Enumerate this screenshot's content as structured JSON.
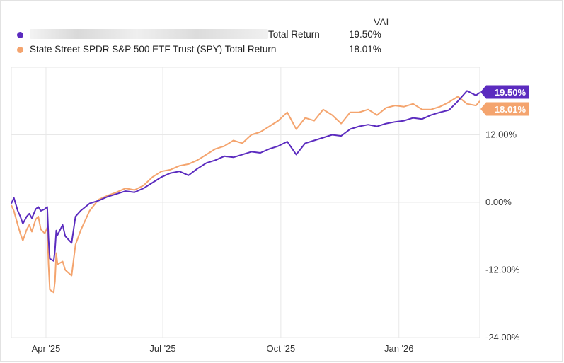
{
  "legend": {
    "value_header": "VAL",
    "series": [
      {
        "name_suffix": "Total Return",
        "value": "19.50%",
        "color": "#5b2bbf",
        "redacted": true
      },
      {
        "name_suffix": "State Street SPDR S&P 500 ETF Trust (SPY) Total Return",
        "value": "18.01%",
        "color": "#f4a46e",
        "redacted": false
      }
    ]
  },
  "chart_data": {
    "type": "line",
    "title": "",
    "xlabel": "",
    "ylabel": "",
    "ylim": [
      -24,
      24
    ],
    "x_range": [
      "2025-03-05",
      "2026-03-05"
    ],
    "x_tick_labels": [
      "Apr '25",
      "Jul '25",
      "Oct '25",
      "Jan '26"
    ],
    "x_tick_dates": [
      "2025-04-01",
      "2025-07-01",
      "2025-10-01",
      "2026-01-01"
    ],
    "y_ticks": [
      12,
      0,
      -12,
      -24
    ],
    "y_tick_labels": [
      "12.00%",
      "0.00%",
      "-12.00%",
      "-24.00%"
    ],
    "grid": true,
    "end_labels": [
      "19.50%",
      "18.01%"
    ],
    "series": [
      {
        "name": "[redacted] Total Return",
        "color": "#5b2bbf",
        "x": [
          "2025-03-05",
          "2025-03-07",
          "2025-03-10",
          "2025-03-12",
          "2025-03-14",
          "2025-03-17",
          "2025-03-19",
          "2025-03-21",
          "2025-03-24",
          "2025-03-26",
          "2025-03-28",
          "2025-03-31",
          "2025-04-02",
          "2025-04-03",
          "2025-04-04",
          "2025-04-07",
          "2025-04-08",
          "2025-04-09",
          "2025-04-10",
          "2025-04-14",
          "2025-04-16",
          "2025-04-21",
          "2025-04-24",
          "2025-04-28",
          "2025-05-05",
          "2025-05-12",
          "2025-05-19",
          "2025-05-26",
          "2025-06-02",
          "2025-06-09",
          "2025-06-16",
          "2025-06-23",
          "2025-06-30",
          "2025-07-07",
          "2025-07-14",
          "2025-07-21",
          "2025-07-28",
          "2025-08-04",
          "2025-08-11",
          "2025-08-18",
          "2025-08-25",
          "2025-09-01",
          "2025-09-08",
          "2025-09-15",
          "2025-09-22",
          "2025-09-29",
          "2025-10-06",
          "2025-10-13",
          "2025-10-20",
          "2025-10-27",
          "2025-11-03",
          "2025-11-10",
          "2025-11-17",
          "2025-11-24",
          "2025-12-01",
          "2025-12-08",
          "2025-12-15",
          "2025-12-22",
          "2025-12-29",
          "2026-01-05",
          "2026-01-12",
          "2026-01-19",
          "2026-01-26",
          "2026-02-02",
          "2026-02-09",
          "2026-02-16",
          "2026-02-23",
          "2026-03-02",
          "2026-03-05"
        ],
        "values": [
          -0.2,
          0.8,
          -1.5,
          -2.5,
          -3.8,
          -2.5,
          -2.0,
          -2.8,
          -1.2,
          -0.8,
          -1.5,
          -1.2,
          -0.8,
          -6.5,
          -10.0,
          -10.4,
          -8.5,
          -5.0,
          -5.8,
          -4.0,
          -6.0,
          -7.2,
          -2.5,
          -1.5,
          -0.2,
          0.3,
          1.0,
          1.5,
          2.0,
          1.8,
          2.5,
          3.5,
          4.5,
          5.2,
          5.5,
          4.8,
          6.0,
          7.0,
          7.5,
          8.2,
          8.0,
          8.5,
          9.0,
          8.8,
          9.5,
          10.0,
          10.8,
          8.5,
          10.5,
          11.0,
          11.5,
          12.0,
          11.8,
          13.0,
          13.5,
          13.8,
          13.5,
          14.0,
          14.3,
          14.5,
          15.0,
          14.8,
          15.5,
          16.0,
          16.4,
          18.0,
          19.8,
          19.0,
          19.5
        ]
      },
      {
        "name": "State Street SPDR S&P 500 ETF Trust (SPY) Total Return",
        "color": "#f4a46e",
        "x": [
          "2025-03-05",
          "2025-03-07",
          "2025-03-10",
          "2025-03-12",
          "2025-03-14",
          "2025-03-17",
          "2025-03-19",
          "2025-03-21",
          "2025-03-24",
          "2025-03-26",
          "2025-03-28",
          "2025-03-31",
          "2025-04-02",
          "2025-04-03",
          "2025-04-04",
          "2025-04-07",
          "2025-04-08",
          "2025-04-09",
          "2025-04-10",
          "2025-04-14",
          "2025-04-16",
          "2025-04-21",
          "2025-04-24",
          "2025-04-28",
          "2025-05-05",
          "2025-05-12",
          "2025-05-19",
          "2025-05-26",
          "2025-06-02",
          "2025-06-09",
          "2025-06-16",
          "2025-06-23",
          "2025-06-30",
          "2025-07-07",
          "2025-07-14",
          "2025-07-21",
          "2025-07-28",
          "2025-08-04",
          "2025-08-11",
          "2025-08-18",
          "2025-08-25",
          "2025-09-01",
          "2025-09-08",
          "2025-09-15",
          "2025-09-22",
          "2025-09-29",
          "2025-10-06",
          "2025-10-13",
          "2025-10-20",
          "2025-10-27",
          "2025-11-03",
          "2025-11-10",
          "2025-11-17",
          "2025-11-24",
          "2025-12-01",
          "2025-12-08",
          "2025-12-15",
          "2025-12-22",
          "2025-12-29",
          "2026-01-05",
          "2026-01-12",
          "2026-01-19",
          "2026-01-26",
          "2026-02-02",
          "2026-02-09",
          "2026-02-16",
          "2026-02-23",
          "2026-03-02",
          "2026-03-05"
        ],
        "values": [
          -0.5,
          -1.5,
          -4.0,
          -5.5,
          -6.8,
          -4.8,
          -4.0,
          -5.2,
          -3.0,
          -2.5,
          -4.8,
          -5.5,
          -4.5,
          -11.0,
          -15.5,
          -16.0,
          -14.0,
          -9.0,
          -11.0,
          -10.5,
          -12.0,
          -13.0,
          -7.5,
          -5.0,
          -1.5,
          0.5,
          1.2,
          1.8,
          2.5,
          2.2,
          3.0,
          4.5,
          5.5,
          5.8,
          6.5,
          6.8,
          7.5,
          8.5,
          9.5,
          10.0,
          11.0,
          10.5,
          12.0,
          12.5,
          13.5,
          14.5,
          16.0,
          13.0,
          15.0,
          14.5,
          16.5,
          15.5,
          14.0,
          16.0,
          16.0,
          16.5,
          15.5,
          16.8,
          17.2,
          17.0,
          17.5,
          16.5,
          16.5,
          17.0,
          17.8,
          18.8,
          17.5,
          17.2,
          18.0
        ]
      }
    ]
  }
}
